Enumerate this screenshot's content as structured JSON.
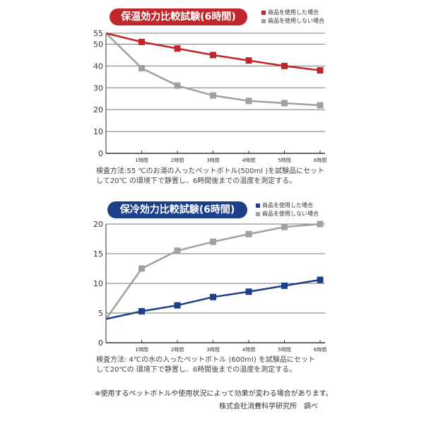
{
  "chart_data": [
    {
      "type": "line",
      "title": "保温効力比較試験(6時間)",
      "title_color": "#c0262b",
      "categories": [
        "",
        "1時間",
        "2時間",
        "3時間",
        "4時間",
        "5時間",
        "6時間"
      ],
      "yticks": [
        0,
        10,
        20,
        30,
        40,
        50,
        55
      ],
      "ylim": [
        0,
        55
      ],
      "grid": true,
      "legend": "top-right",
      "series": [
        {
          "name": "商品を使用した場合",
          "color": "#c0262b",
          "values": [
            55,
            51,
            48,
            45,
            42.5,
            40,
            38
          ]
        },
        {
          "name": "商品を使用しない場合",
          "color": "#a0a0a0",
          "values": [
            55,
            39,
            31,
            26.5,
            24,
            23,
            22
          ]
        }
      ],
      "note": [
        "検査方法:55 ℃のお湯の入ったペットボトル(500ml )を試験品にセット",
        "して20℃ の環境下で静置し、6時間後までの温度を測定する。"
      ]
    },
    {
      "type": "line",
      "title": "保冷効力比較試験(6時間)",
      "title_color": "#1d3f8a",
      "categories": [
        "",
        "1時間",
        "2時間",
        "3時間",
        "4時間",
        "5時間",
        "6時間"
      ],
      "yticks": [
        0,
        5,
        10,
        15,
        20
      ],
      "ylim": [
        0,
        20
      ],
      "grid": true,
      "legend": "top-right",
      "series": [
        {
          "name": "商品を使用した場合",
          "color": "#1d3f8a",
          "values": [
            4,
            5.3,
            6.3,
            7.7,
            8.6,
            9.6,
            10.6
          ]
        },
        {
          "name": "商品を使用しない場合",
          "color": "#a0a0a0",
          "values": [
            4,
            12.5,
            15.5,
            17,
            18.3,
            19.5,
            20
          ]
        }
      ],
      "note": [
        "検査方法: 4℃の水の入ったペットボトル (600ml) を試験品にセット",
        "して20℃の 環境下で静置し、6時間後までの温度を測定する。"
      ]
    }
  ],
  "footer": {
    "disclaimer": "※使用するペットボトルや使用状況によって効果が変わる場合があります。",
    "source": "株式会社消費科学研究所　調べ"
  }
}
